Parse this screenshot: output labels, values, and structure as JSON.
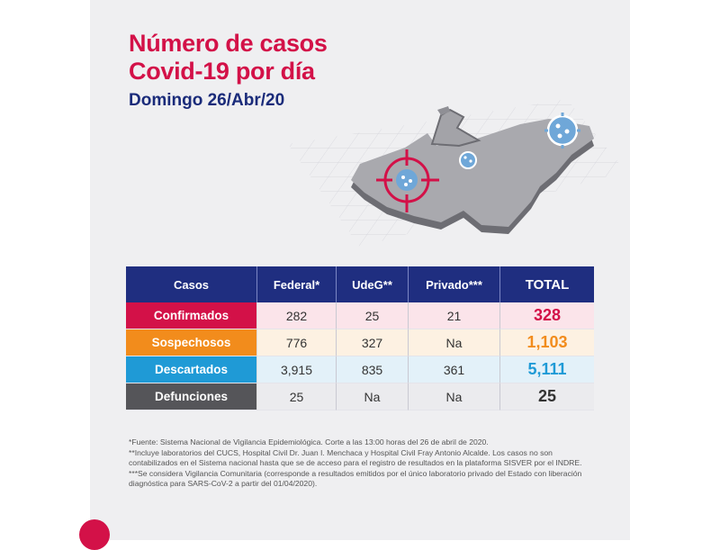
{
  "header": {
    "title_line1": "Número de casos",
    "title_line2": "Covid-19 por día",
    "date": "Domingo 26/Abr/20"
  },
  "colors": {
    "brand_red": "#d31148",
    "navy": "#1f2e80",
    "orange": "#f28c1c",
    "blue": "#1f9ad6",
    "gray": "#555559"
  },
  "icons": [
    "virus-icon",
    "target-crosshair-icon",
    "jalisco-map"
  ],
  "table": {
    "headers": [
      "Casos",
      "Federal*",
      "UdeG**",
      "Privado***",
      "TOTAL"
    ],
    "rows": [
      {
        "label": "Confirmados",
        "federal": "282",
        "udeg": "25",
        "privado": "21",
        "total": "328"
      },
      {
        "label": "Sospechosos",
        "federal": "776",
        "udeg": "327",
        "privado": "Na",
        "total": "1,103"
      },
      {
        "label": "Descartados",
        "federal": "3,915",
        "udeg": "835",
        "privado": "361",
        "total": "5,111"
      },
      {
        "label": "Defunciones",
        "federal": "25",
        "udeg": "Na",
        "privado": "Na",
        "total": "25"
      }
    ]
  },
  "footnotes": [
    "*Fuente: Sistema Nacional de Vigilancia Epidemiológica. Corte a las 13:00 horas del 26 de abril de 2020.",
    "**Incluye laboratorios del CUCS, Hospital Civil Dr. Juan I. Menchaca y Hospital Civil Fray Antonio Alcalde. Los casos no son contabilizados en el Sistema nacional hasta que se de acceso para el registro de resultados en la plataforma SISVER por el INDRE.",
    "***Se considera Vigilancia Comunitaria (corresponde a resultados emitidos por el único laboratorio privado del Estado con liberación diagnóstica para SARS-CoV-2 a partir del 01/04/2020)."
  ]
}
